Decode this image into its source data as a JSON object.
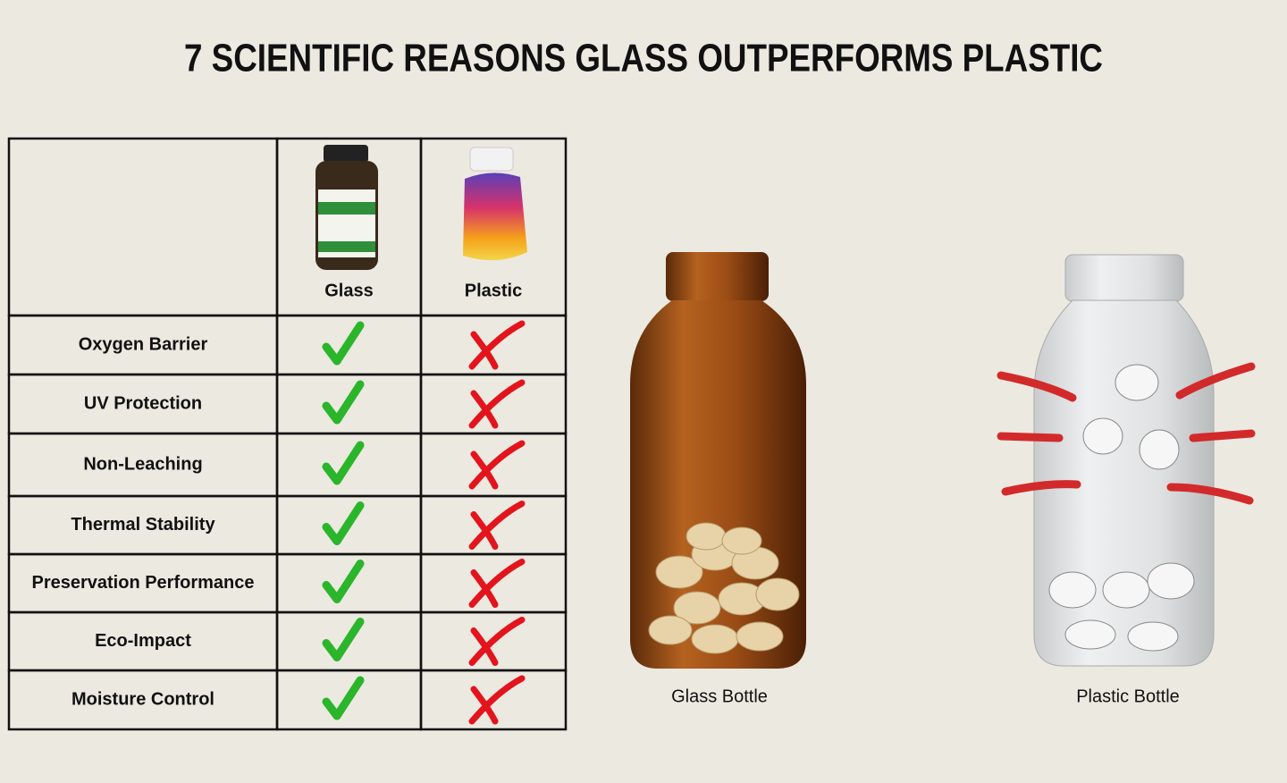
{
  "title": "7 SCIENTIFIC REASONS GLASS OUTPERFORMS PLASTIC",
  "table": {
    "columns": [
      "Glass",
      "Plastic"
    ],
    "rows": [
      "Oxygen Barrier",
      "UV Protection",
      "Non-Leaching",
      "Thermal Stability",
      "Preservation Performance",
      "Eco-Impact",
      "Moisture Control"
    ]
  },
  "bottles": [
    "Glass Bottle",
    "Plastic Bottle"
  ]
}
